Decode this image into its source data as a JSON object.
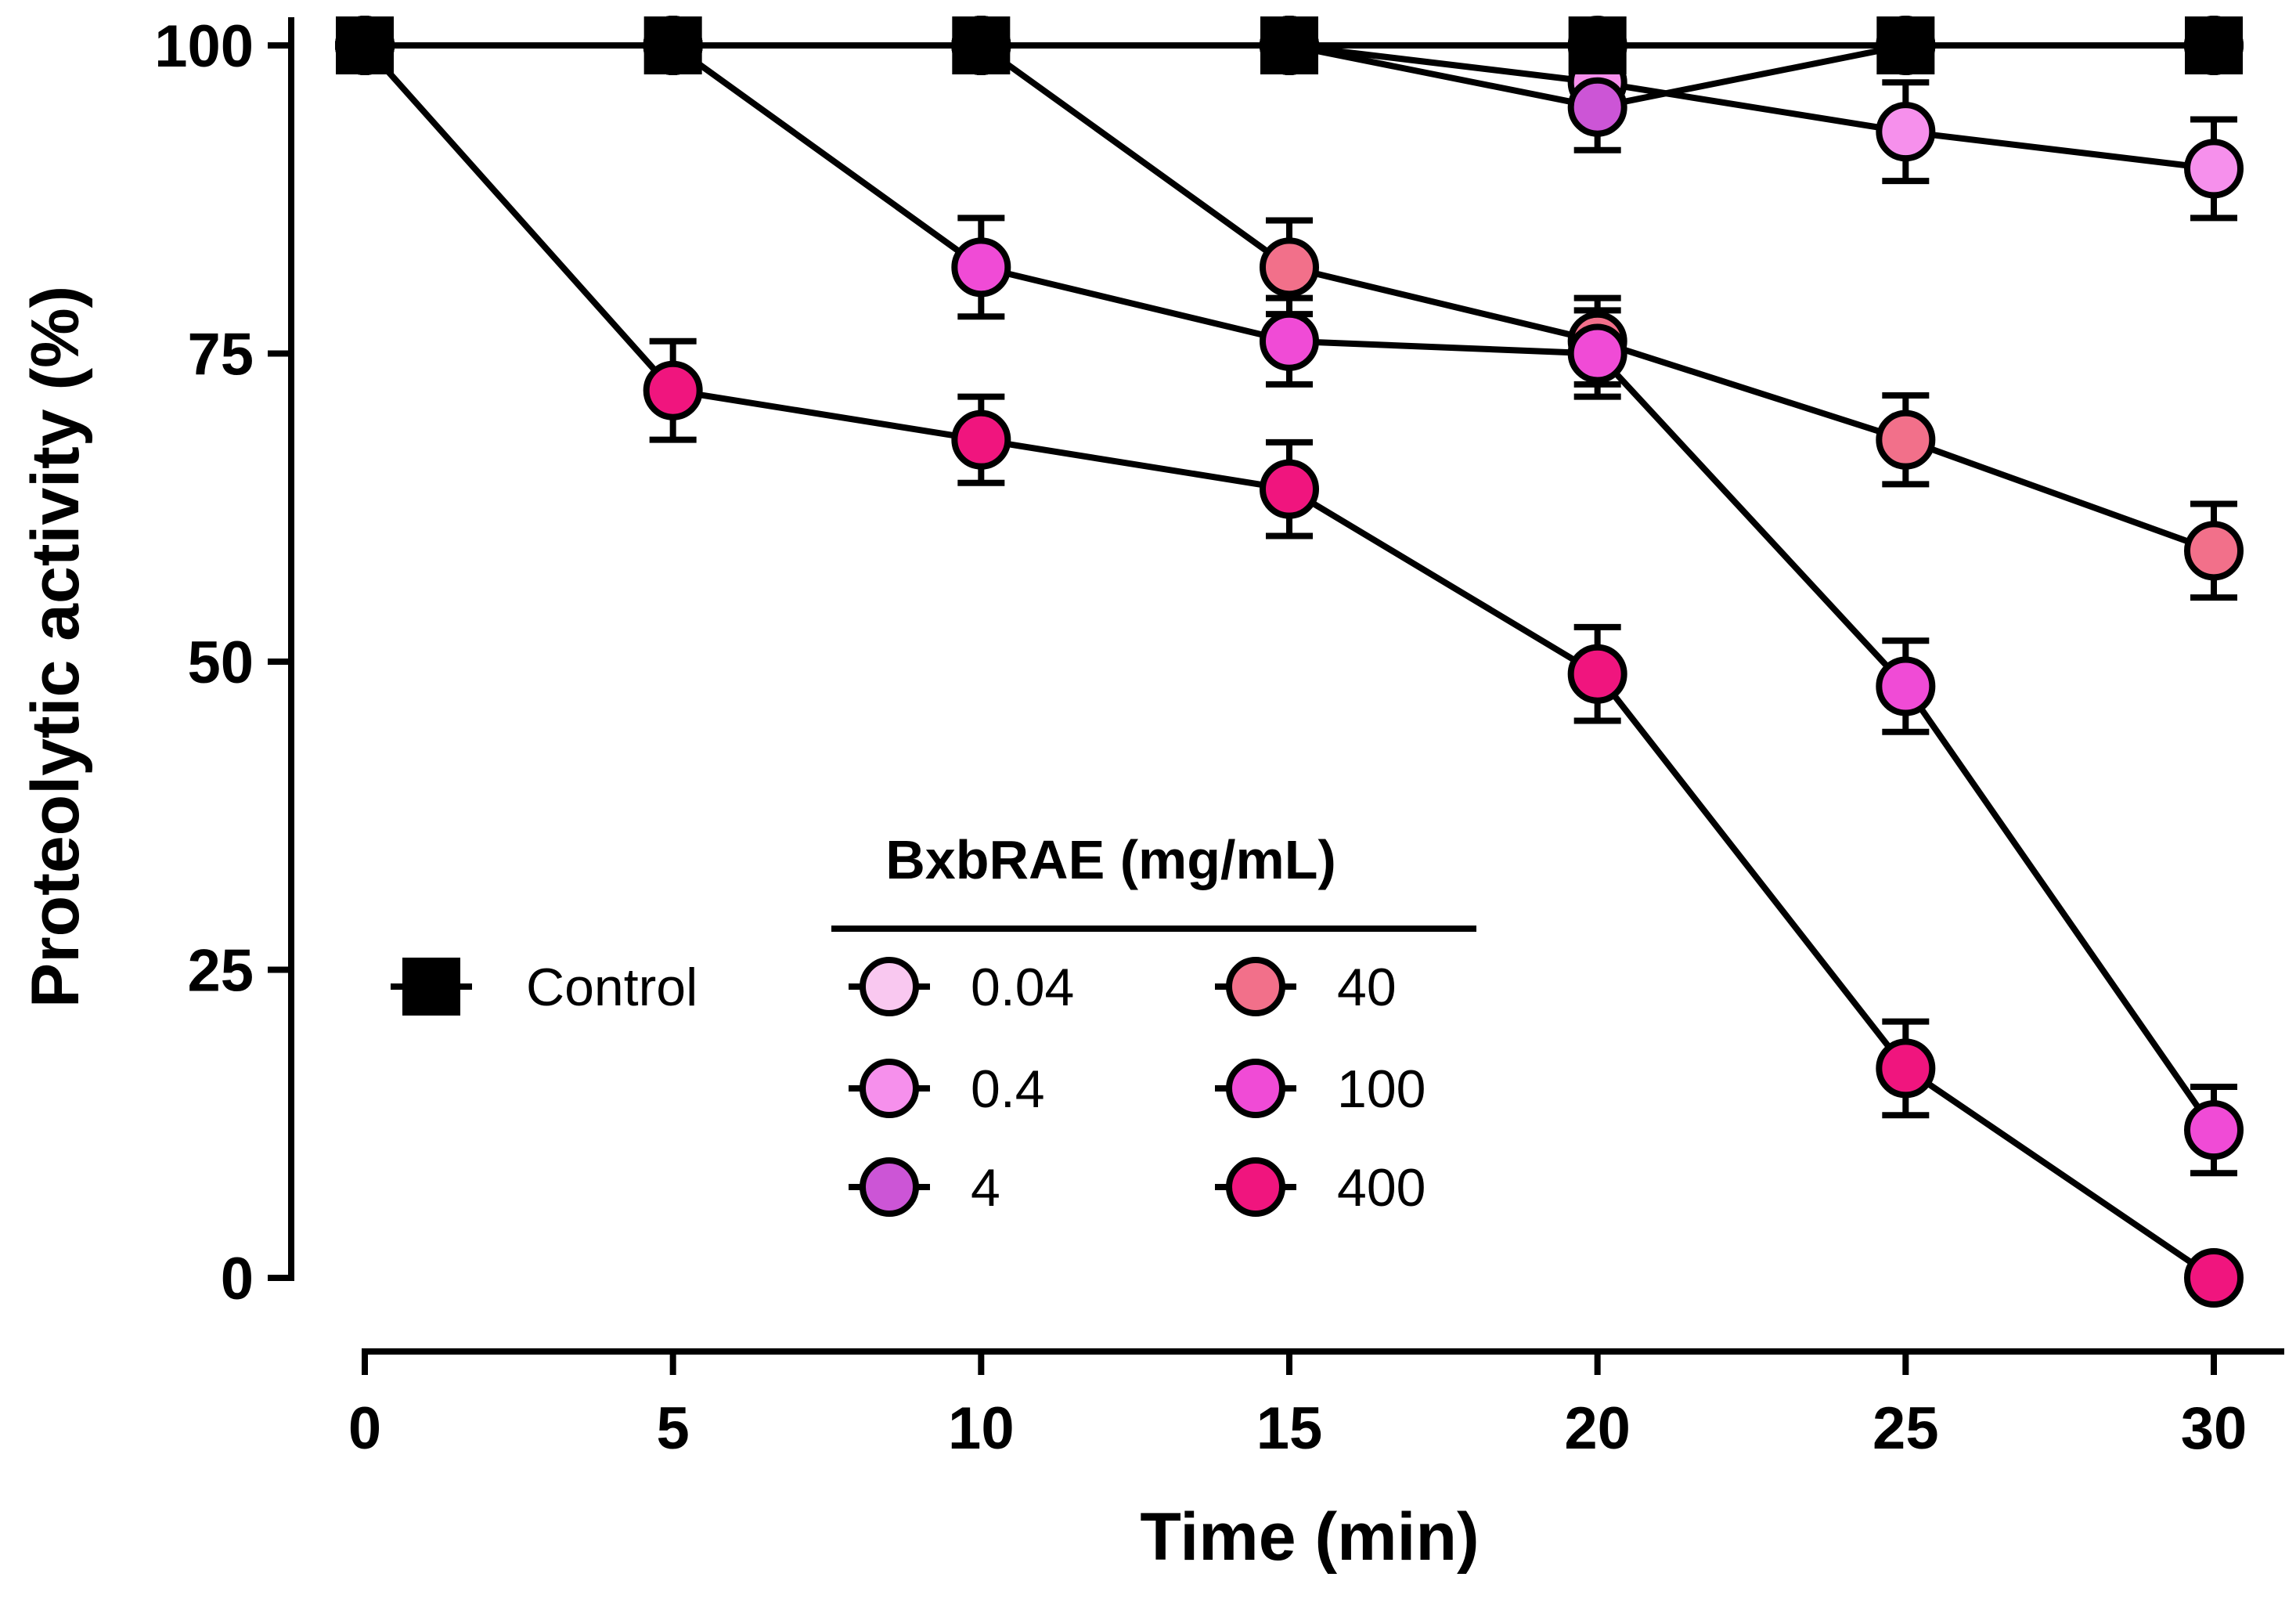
{
  "chart_data": {
    "type": "line",
    "title": "",
    "xlabel": "Time (min)",
    "ylabel": "Proteolytic activity (%)",
    "x": [
      0,
      5,
      10,
      15,
      20,
      25,
      30
    ],
    "xlim": [
      0,
      30
    ],
    "ylim": [
      0,
      100
    ],
    "xticks": [
      "0",
      "5",
      "10",
      "15",
      "20",
      "25",
      "30"
    ],
    "yticks": [
      "0",
      "25",
      "50",
      "75",
      "100"
    ],
    "legend": {
      "title": "BxbRAE (mg/mL)",
      "placement": "center-bottom"
    },
    "series": [
      {
        "name": "Control",
        "marker": "square",
        "color": "#000000",
        "values": [
          100,
          100,
          100,
          100,
          100,
          100,
          100
        ],
        "errors": [
          0,
          0,
          0,
          0,
          0,
          0,
          0
        ]
      },
      {
        "name": "0.04",
        "marker": "circle",
        "color": "#F9C8F0",
        "values": [
          100,
          100,
          100,
          100,
          100,
          100,
          100
        ],
        "errors": [
          0,
          0,
          0,
          0,
          0,
          0,
          0
        ]
      },
      {
        "name": "0.4",
        "marker": "circle",
        "color": "#F690EC",
        "values": [
          100,
          100,
          100,
          100,
          97,
          93,
          90
        ],
        "errors": [
          0,
          0,
          0,
          0,
          2.5,
          4,
          4
        ]
      },
      {
        "name": "4",
        "marker": "circle",
        "color": "#CC55D6",
        "values": [
          100,
          100,
          100,
          100,
          95,
          100,
          100
        ],
        "errors": [
          0,
          0,
          0,
          0,
          3.5,
          0,
          0
        ]
      },
      {
        "name": "40",
        "marker": "circle",
        "color": "#F2708A",
        "values": [
          100,
          100,
          100,
          82,
          76,
          68,
          59
        ],
        "errors": [
          0,
          0,
          0,
          3.8,
          3.5,
          3.6,
          3.8
        ]
      },
      {
        "name": "100",
        "marker": "circle",
        "color": "#F04BD6",
        "values": [
          100,
          100,
          82,
          76,
          75,
          48,
          12
        ],
        "errors": [
          0,
          0,
          4,
          3.5,
          3.5,
          3.7,
          3.5
        ]
      },
      {
        "name": "400",
        "marker": "circle",
        "color": "#F0157E",
        "values": [
          100,
          72,
          68,
          64,
          49,
          17,
          0
        ],
        "errors": [
          0,
          4,
          3.5,
          3.8,
          3.8,
          3.8,
          0
        ]
      }
    ]
  }
}
